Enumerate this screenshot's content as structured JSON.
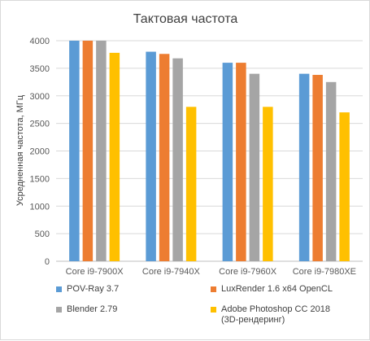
{
  "chart_data": {
    "type": "bar",
    "title": "Тактовая частота",
    "ylabel": "Усредненная частота, МГц",
    "xlabel": "",
    "ylim": [
      0,
      4000
    ],
    "yticks": [
      0,
      500,
      1000,
      1500,
      2000,
      2500,
      3000,
      3500,
      4000
    ],
    "categories": [
      "Core i9-7900X",
      "Core i9-7940X",
      "Core i9-7960X",
      "Core i9-7980XE"
    ],
    "series": [
      {
        "name": "POV-Ray 3.7",
        "color": "#5b9bd5",
        "values": [
          4000,
          3800,
          3600,
          3400
        ]
      },
      {
        "name": "LuxRender 1.6 x64 OpenCL",
        "color": "#ed7d31",
        "values": [
          4000,
          3760,
          3600,
          3380
        ]
      },
      {
        "name": "Blender 2.79",
        "color": "#a5a5a5",
        "values": [
          4000,
          3680,
          3400,
          3250
        ]
      },
      {
        "name": "Adobe Photoshop CC 2018\n(3D-рендеринг)",
        "color": "#ffc000",
        "values": [
          3780,
          2800,
          2800,
          2700
        ]
      }
    ],
    "grid": true,
    "legend_position": "bottom"
  }
}
